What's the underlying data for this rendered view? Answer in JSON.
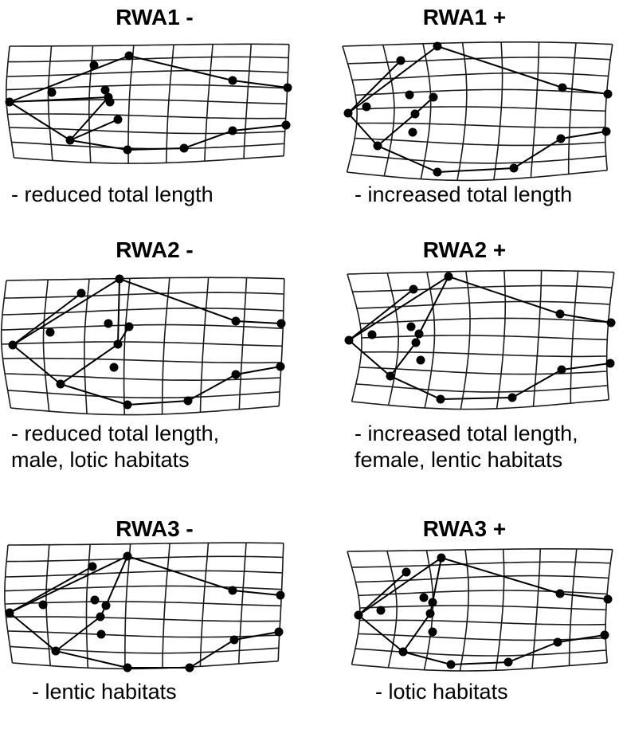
{
  "panels": [
    {
      "id": "rwa1-minus",
      "title": "RWA1 -",
      "caption": [
        "- reduced total length"
      ]
    },
    {
      "id": "rwa1-plus",
      "title": "RWA1 +",
      "caption": [
        "- increased total length"
      ]
    },
    {
      "id": "rwa2-minus",
      "title": "RWA2 -",
      "caption": [
        "- reduced total length,",
        "male, lotic habitats"
      ]
    },
    {
      "id": "rwa2-plus",
      "title": "RWA2 +",
      "caption": [
        "- increased total length,",
        "female, lentic habitats"
      ]
    },
    {
      "id": "rwa3-minus",
      "title": "RWA3 -",
      "caption": [
        "- lentic habitats"
      ]
    },
    {
      "id": "rwa3-plus",
      "title": "RWA3 +",
      "caption": [
        "- lotic habitats"
      ]
    }
  ]
}
